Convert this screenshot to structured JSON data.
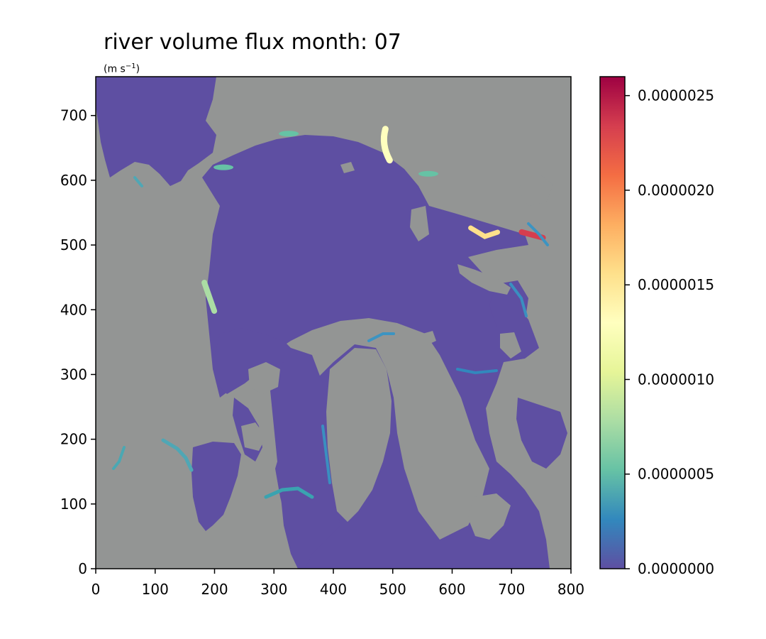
{
  "chart_data": {
    "type": "heatmap",
    "title": "river volume flux month: 07",
    "units": {
      "base": "(m s",
      "exp": "−1",
      "close": ")"
    },
    "xlim": [
      0,
      800
    ],
    "ylim": [
      0,
      760
    ],
    "xticks": [
      0,
      100,
      200,
      300,
      400,
      500,
      600,
      700,
      800
    ],
    "yticks": [
      0,
      100,
      200,
      300,
      400,
      500,
      600,
      700
    ],
    "colormap": "Spectral_r",
    "land_color": "#939594",
    "ocean_color": "#5e4fa2",
    "colorbar": {
      "min": 0.0,
      "max": 2.6e-06,
      "ticks": [
        "0.0000000",
        "0.0000005",
        "0.0000010",
        "0.0000015",
        "0.0000020",
        "0.0000025"
      ],
      "tick_values": [
        0,
        5e-07,
        1e-06,
        1.5e-06,
        2e-06,
        2.5e-06
      ],
      "colors": [
        "#5e4fa2",
        "#3288bd",
        "#66c2a5",
        "#abdda4",
        "#e6f598",
        "#ffffbf",
        "#fee08b",
        "#fdae61",
        "#f46d43",
        "#d53e4f",
        "#9e0142"
      ]
    },
    "river_plumes": [
      {
        "name": "plume-1",
        "x": 490,
        "y": 655,
        "value": 1.3e-06
      },
      {
        "name": "plume-2",
        "x": 655,
        "y": 522,
        "value": 1.5e-06
      },
      {
        "name": "plume-3",
        "x": 735,
        "y": 520,
        "value": 2.4e-06
      },
      {
        "name": "plume-4",
        "x": 190,
        "y": 420,
        "value": 8e-07
      },
      {
        "name": "plume-5",
        "x": 560,
        "y": 610,
        "value": 6e-07
      },
      {
        "name": "plume-6",
        "x": 325,
        "y": 672,
        "value": 4e-07
      },
      {
        "name": "plume-7",
        "x": 215,
        "y": 620,
        "value": 4e-07
      }
    ]
  }
}
